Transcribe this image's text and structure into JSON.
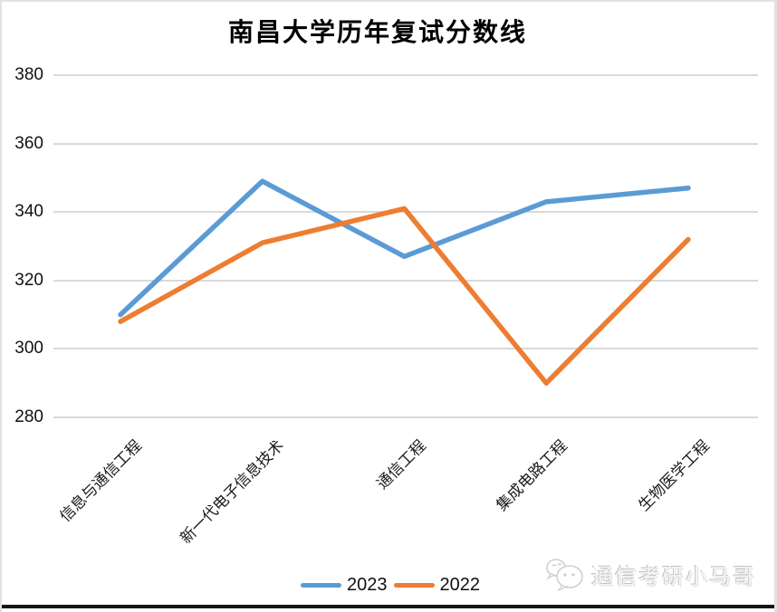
{
  "chart_data": {
    "type": "line",
    "title": "南昌大学历年复试分数线",
    "categories": [
      "信息与通信工程",
      "新一代电子信息技术",
      "通信工程",
      "集成电路工程",
      "生物医学工程"
    ],
    "series": [
      {
        "name": "2023",
        "color": "#5B9BD5",
        "values": [
          310,
          349,
          327,
          343,
          347
        ]
      },
      {
        "name": "2022",
        "color": "#ED7D31",
        "values": [
          308,
          331,
          341,
          290,
          332
        ]
      }
    ],
    "ylim": [
      280,
      380
    ],
    "yticks": [
      280,
      300,
      320,
      340,
      360,
      380
    ],
    "xlabel": "",
    "ylabel": "",
    "grid": "horizontal",
    "legend_position": "bottom"
  },
  "watermark": {
    "text": "通信考研小马哥",
    "icon": "wechat-chat-bubbles"
  },
  "colors": {
    "gridline": "#D9D9D9",
    "frame_border": "#E2E2E2",
    "bottom_bar": "#161616",
    "tick_text": "#111111",
    "watermark_text": "#F5F5F5"
  }
}
